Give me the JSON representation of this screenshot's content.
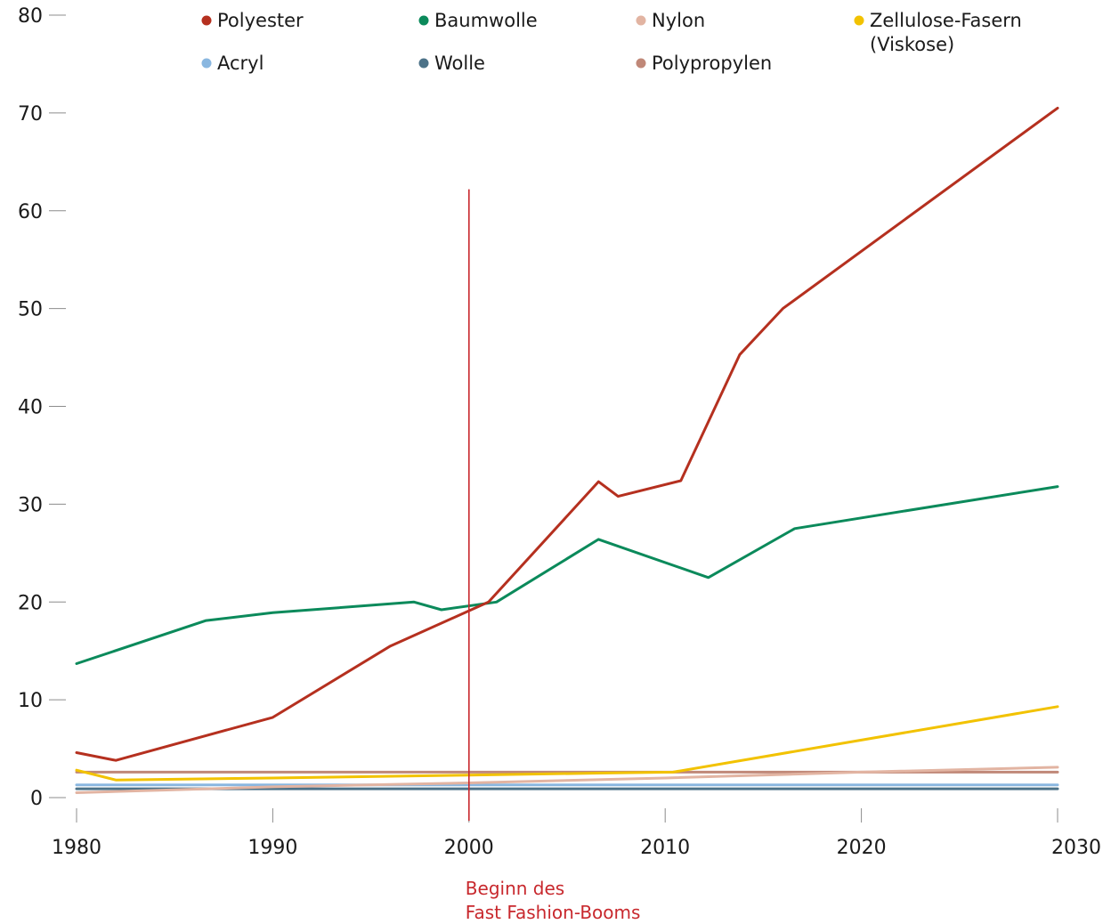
{
  "chart_data": {
    "type": "line",
    "xlim": [
      1980,
      2030
    ],
    "ylim": [
      0,
      80
    ],
    "x_ticks": [
      "1980",
      "1990",
      "2000",
      "2010",
      "2020",
      "2030"
    ],
    "y_ticks": [
      "0",
      "10",
      "20",
      "30",
      "40",
      "50",
      "60",
      "70",
      "80"
    ],
    "grid": false,
    "legend_position": "top",
    "series": [
      {
        "name": "Polyester",
        "color": "#b5301f",
        "points": [
          [
            1980,
            4.6
          ],
          [
            1982,
            3.8
          ],
          [
            1990,
            8.2
          ],
          [
            1996,
            15.5
          ],
          [
            2001,
            20.0
          ],
          [
            2006.6,
            32.3
          ],
          [
            2007.6,
            30.8
          ],
          [
            2010.8,
            32.4
          ],
          [
            2013.8,
            45.3
          ],
          [
            2016,
            50.0
          ],
          [
            2030,
            70.5
          ]
        ]
      },
      {
        "name": "Baumwolle",
        "color": "#0b8a5b",
        "points": [
          [
            1980,
            13.7
          ],
          [
            1986.6,
            18.1
          ],
          [
            1990,
            18.9
          ],
          [
            1997.2,
            20.0
          ],
          [
            1998.6,
            19.2
          ],
          [
            2001.4,
            20.0
          ],
          [
            2006.6,
            26.4
          ],
          [
            2012.2,
            22.5
          ],
          [
            2016.6,
            27.5
          ],
          [
            2020,
            28.6
          ],
          [
            2030,
            31.8
          ]
        ]
      },
      {
        "name": "Nylon",
        "color": "#e2b4a2",
        "points": [
          [
            1980,
            0.5
          ],
          [
            1990,
            1.1
          ],
          [
            2000,
            1.5
          ],
          [
            2010,
            2.0
          ],
          [
            2020,
            2.6
          ],
          [
            2030,
            3.1
          ]
        ]
      },
      {
        "name": "Zellulose-Fasern\n(Viskose)",
        "color": "#f2c200",
        "points": [
          [
            1980,
            2.8
          ],
          [
            1982,
            1.8
          ],
          [
            1990,
            2.0
          ],
          [
            2000,
            2.3
          ],
          [
            2006.6,
            2.5
          ],
          [
            2010.4,
            2.6
          ],
          [
            2030,
            9.3
          ]
        ]
      },
      {
        "name": "Acryl",
        "color": "#8ab7e0",
        "points": [
          [
            1980,
            1.3
          ],
          [
            2030,
            1.3
          ]
        ]
      },
      {
        "name": "Wolle",
        "color": "#4c7288",
        "points": [
          [
            1980,
            0.9
          ],
          [
            2030,
            0.9
          ]
        ]
      },
      {
        "name": "Polypropylen",
        "color": "#c08878",
        "points": [
          [
            1980,
            2.6
          ],
          [
            2030,
            2.6
          ]
        ]
      }
    ],
    "annotation": {
      "x": 2000,
      "line_top_value": 62.2,
      "label": "2000",
      "text_lines": [
        "Beginn des",
        "Fast Fashion-Booms"
      ],
      "color": "#c8282d"
    }
  }
}
